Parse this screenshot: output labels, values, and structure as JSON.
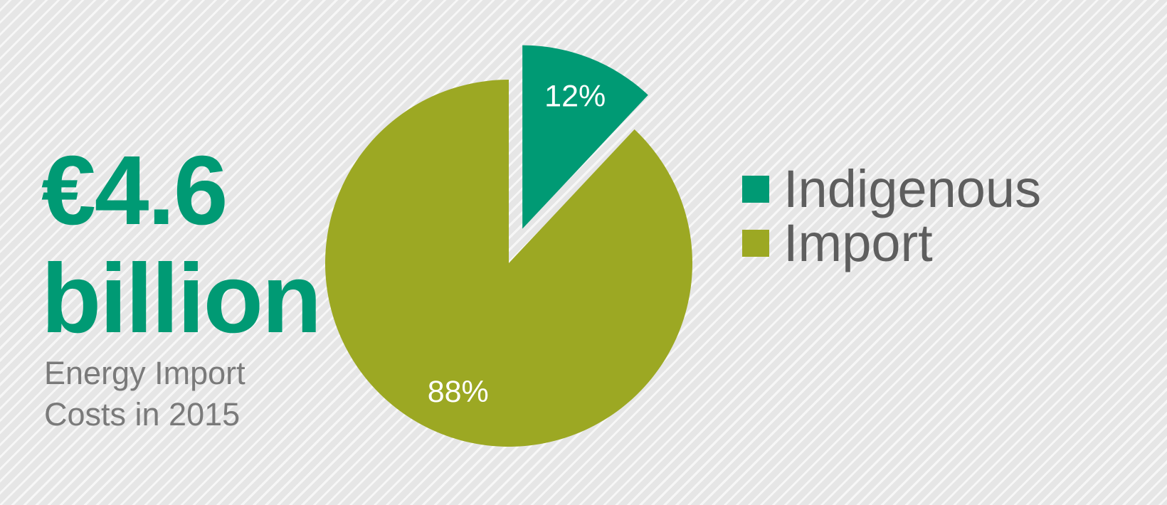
{
  "headline": {
    "line1": "€4.6",
    "line2": "billion"
  },
  "caption": {
    "line1": "Energy Import",
    "line2": "Costs in 2015"
  },
  "chart_data": {
    "type": "pie",
    "slices": [
      {
        "name": "Indigenous",
        "value": 12,
        "label": "12%",
        "color": "#009a74",
        "exploded": true
      },
      {
        "name": "Import",
        "value": 88,
        "label": "88%",
        "color": "#9ca823",
        "exploded": false
      }
    ],
    "legend": {
      "placement": "right",
      "entries": [
        "Indigenous",
        "Import"
      ]
    }
  }
}
